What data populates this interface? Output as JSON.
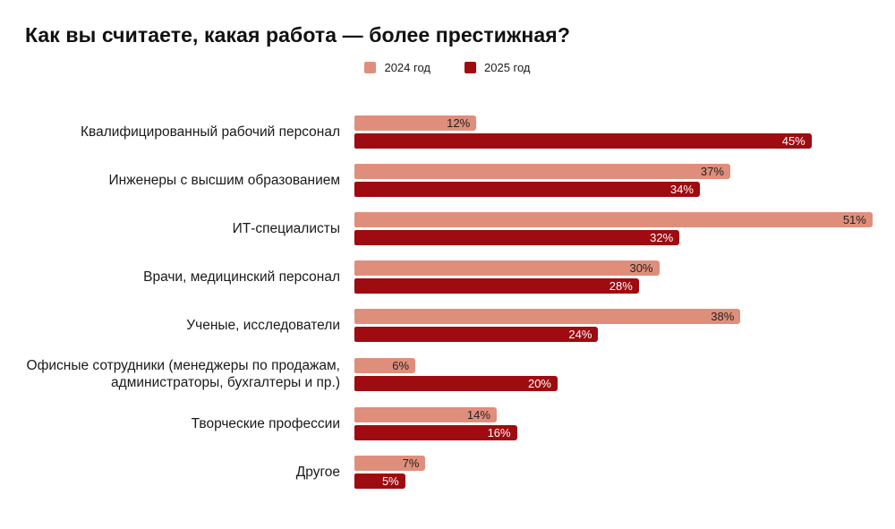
{
  "title": "Как вы считаете, какая работа — более престижная?",
  "legend": {
    "items": [
      {
        "label": "2024 год",
        "color": "#E08E7C"
      },
      {
        "label": "2025 год",
        "color": "#9E0B10"
      }
    ]
  },
  "chart_data": {
    "type": "bar",
    "orientation": "horizontal",
    "title": "Как вы считаете, какая работа — более престижная?",
    "categories": [
      "Квалифицированный рабочий персонал",
      "Инженеры с высшим образованием",
      "ИТ-специалисты",
      "Врачи, медицинский персонал",
      "Ученые, исследователи",
      "Офисные сотрудники (менеджеры по продажам, администраторы, бухгалтеры и пр.)",
      "Творческие профессии",
      "Другое"
    ],
    "series": [
      {
        "name": "2024 год",
        "color": "#E08E7C",
        "label_color": "#222222",
        "values": [
          12,
          37,
          51,
          30,
          38,
          6,
          14,
          7
        ]
      },
      {
        "name": "2025 год",
        "color": "#9E0B10",
        "label_color": "#ffffff",
        "values": [
          45,
          34,
          32,
          28,
          24,
          20,
          16,
          5
        ]
      }
    ],
    "value_suffix": "%",
    "xlim": [
      0,
      51
    ],
    "grid": false,
    "axes_visible": false,
    "legend_position": "top-center",
    "value_labels": "inside-end"
  }
}
